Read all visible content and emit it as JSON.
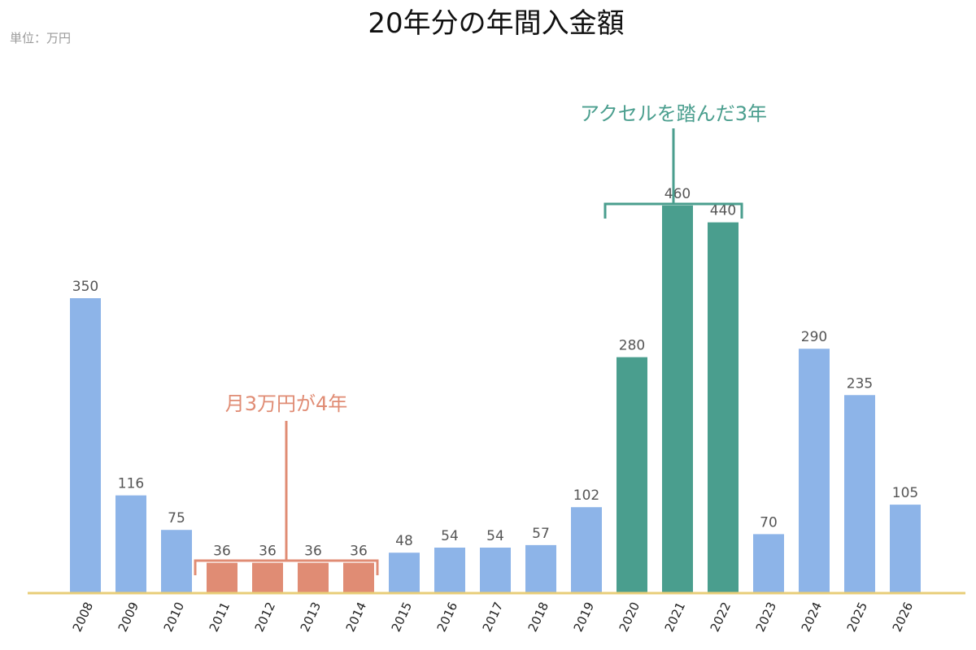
{
  "chart_data": {
    "type": "bar",
    "title": "20年分の年間入金額",
    "unit_label": "単位：万円",
    "categories": [
      "2008",
      "2009",
      "2010",
      "2011",
      "2012",
      "2013",
      "2014",
      "2015",
      "2016",
      "2017",
      "2018",
      "2019",
      "2020",
      "2021",
      "2022",
      "2023",
      "2024",
      "2025",
      "2026"
    ],
    "values": [
      350,
      116,
      75,
      36,
      36,
      36,
      36,
      48,
      54,
      54,
      57,
      102,
      280,
      460,
      440,
      70,
      290,
      235,
      105
    ],
    "ylim": [
      0,
      500
    ],
    "grid": false,
    "colors": {
      "default": "#8db4e8",
      "low": "#e08c74",
      "high": "#4a9e8e",
      "axis": "#e8cd78"
    },
    "highlight_groups": [
      {
        "label": "月3万円が4年",
        "color": "#e08c74",
        "color_key": "low",
        "from": "2011",
        "to": "2014"
      },
      {
        "label": "アクセルを踏んだ3年",
        "color": "#4a9e8e",
        "color_key": "high",
        "from": "2020",
        "to": "2022"
      }
    ]
  }
}
